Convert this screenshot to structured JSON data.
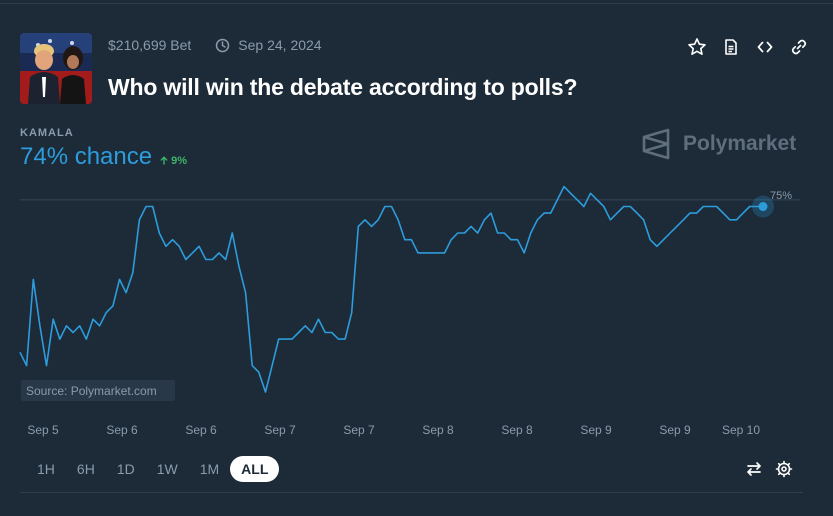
{
  "market": {
    "bet_volume": "$210,699 Bet",
    "date": "Sep 24, 2024",
    "title": "Who will win the debate according to polls?"
  },
  "outcome": {
    "label": "KAMALA",
    "chance": "74% chance",
    "change": "9%"
  },
  "brand": {
    "name": "Polymarket"
  },
  "actions": [
    "star-icon",
    "document-icon",
    "code-icon",
    "link-icon"
  ],
  "range_buttons": [
    "1H",
    "6H",
    "1D",
    "1W",
    "1M",
    "ALL"
  ],
  "active_range": "ALL",
  "colors": {
    "accent": "#2d9cdb",
    "up": "#3db468",
    "background": "#1d2b39",
    "muted": "#8a9bac"
  },
  "chart_data": {
    "type": "line",
    "x_ticks": [
      "Sep 5",
      "Sep 6",
      "Sep 6",
      "Sep 7",
      "Sep 7",
      "Sep 8",
      "Sep 8",
      "Sep 9",
      "Sep 9",
      "Sep 10"
    ],
    "reference_label": "75%",
    "reference_value": 75,
    "source": "Source: Polymarket.com",
    "ylim": [
      43,
      78
    ],
    "series": [
      {
        "values": [
          52,
          50,
          63,
          56,
          50,
          57,
          54,
          56,
          55,
          56,
          54,
          57,
          56,
          58,
          59,
          63,
          61,
          64,
          72,
          74,
          74,
          70,
          68,
          69,
          68,
          66,
          67,
          68,
          66,
          66,
          67,
          66,
          70,
          65,
          61,
          50,
          49,
          46,
          50,
          54,
          54,
          54,
          55,
          56,
          55,
          57,
          55,
          55,
          54,
          54,
          58,
          71,
          72,
          71,
          72,
          74,
          74,
          72,
          69,
          69,
          67,
          67,
          67,
          67,
          67,
          69,
          70,
          70,
          71,
          70,
          72,
          73,
          70,
          70,
          69,
          69,
          67,
          70,
          72,
          73,
          73,
          75,
          77,
          76,
          75,
          74,
          76,
          75,
          74,
          72,
          73,
          74,
          74,
          73,
          72,
          69,
          68,
          69,
          70,
          71,
          72,
          73,
          73,
          74,
          74,
          74,
          73,
          72,
          72,
          73,
          74,
          74,
          74
        ]
      }
    ]
  }
}
